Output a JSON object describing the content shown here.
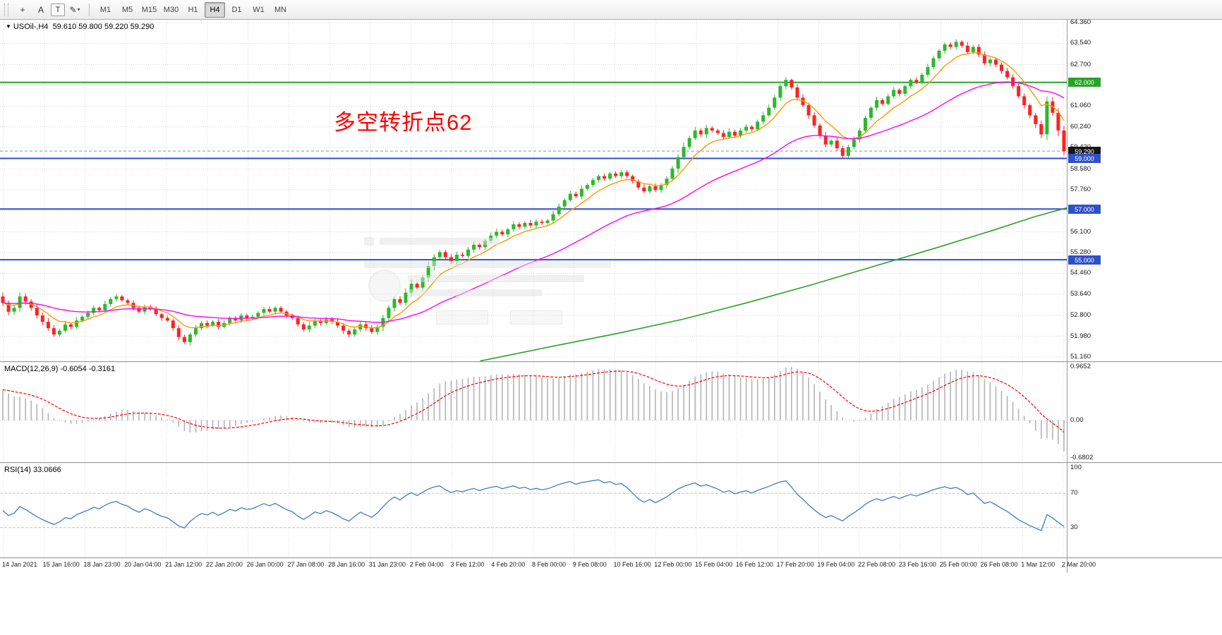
{
  "colors": {
    "candle_up": "#2db82d",
    "candle_down": "#ff2222",
    "ma_fast": "#ff9900",
    "ma_mid": "#ff00ff",
    "ma_slow": "#2e9e2e",
    "grid": "#d8d8d8",
    "macd_hist": "#b4b4b4",
    "macd_signal": "#ff0000",
    "rsi_line": "#3f7dc0",
    "annotation": "#ff0000",
    "blue_level": "#3050c8",
    "green_level": "#28a428"
  },
  "toolbar": {
    "tools": [
      {
        "id": "crosshair",
        "glyph": "+"
      },
      {
        "id": "arrow-label",
        "glyph": "A"
      },
      {
        "id": "text",
        "glyph": "T"
      },
      {
        "id": "draw",
        "glyph": "✎",
        "dropdown": "▾"
      }
    ],
    "timeframes": [
      "M1",
      "M5",
      "M15",
      "M30",
      "H1",
      "H4",
      "D1",
      "W1",
      "MN"
    ],
    "active_timeframe": "H4"
  },
  "chart_data": {
    "type": "candlestick",
    "symbol_line": {
      "symbol": "USOil-,H4",
      "ohlc": "59.610 59.800 59.220 59.290"
    },
    "annotation": {
      "text": "多空转折点62",
      "color": "#ff0000"
    },
    "ylim": [
      51.16,
      64.36
    ],
    "y_axis_labels": [
      "64.360",
      "63.540",
      "62.700",
      "61.880",
      "61.060",
      "60.240",
      "59.420",
      "58.580",
      "57.760",
      "56.940",
      "56.100",
      "55.280",
      "54.460",
      "53.640",
      "52.800",
      "51.980",
      "51.160"
    ],
    "time_labels": [
      "14 Jan 2021",
      "15 Jan 16:00",
      "18 Jan 23:00",
      "20 Jan 04:00",
      "21 Jan 12:00",
      "22 Jan 20:00",
      "26 Jan 00:00",
      "27 Jan 08:00",
      "28 Jan 16:00",
      "31 Jan 23:00",
      "2 Feb 04:00",
      "3 Feb 12:00",
      "4 Feb 20:00",
      "8 Feb 00:00",
      "9 Feb 08:00",
      "10 Feb 16:00",
      "12 Feb 00:00",
      "15 Feb 04:00",
      "16 Feb 12:00",
      "17 Feb 20:00",
      "19 Feb 04:00",
      "22 Feb 08:00",
      "23 Feb 16:00",
      "25 Feb 00:00",
      "26 Feb 08:00",
      "1 Mar 12:00",
      "2 Mar 20:00"
    ],
    "hlines": [
      {
        "price": 62.0,
        "color": "#28a428",
        "width": 2,
        "dash": null,
        "label": "62.000",
        "label_bg": "#28a428"
      },
      {
        "price": 59.29,
        "color": "#7e90c8",
        "width": 1,
        "dash": "4,3",
        "label": "59.290",
        "label_bg": "#14161a"
      },
      {
        "price": 59.0,
        "color": "#3050c8",
        "width": 2,
        "dash": null,
        "label": "59.000",
        "label_bg": "#3050c8"
      },
      {
        "price": 57.0,
        "color": "#3050c8",
        "width": 2,
        "dash": null,
        "label": "57.000",
        "label_bg": "#3050c8"
      },
      {
        "price": 55.0,
        "color": "#3050c8",
        "width": 2,
        "dash": null,
        "label": "55.000",
        "label_bg": "#3050c8"
      }
    ],
    "first_open": 53.55,
    "closes": [
      53.3,
      52.95,
      53.1,
      53.55,
      53.35,
      53.1,
      52.8,
      52.55,
      52.3,
      52.05,
      52.2,
      52.45,
      52.35,
      52.6,
      52.75,
      52.9,
      53.1,
      53.0,
      53.25,
      53.45,
      53.55,
      53.4,
      53.3,
      53.1,
      52.95,
      53.15,
      53.05,
      52.85,
      52.7,
      52.6,
      52.3,
      51.95,
      51.75,
      52.05,
      52.3,
      52.5,
      52.4,
      52.55,
      52.35,
      52.5,
      52.7,
      52.6,
      52.8,
      52.7,
      52.75,
      52.9,
      53.05,
      52.95,
      53.1,
      52.95,
      52.8,
      52.7,
      52.45,
      52.25,
      52.4,
      52.6,
      52.5,
      52.65,
      52.55,
      52.4,
      52.2,
      52.05,
      52.25,
      52.45,
      52.3,
      52.15,
      52.35,
      52.7,
      53.1,
      53.45,
      53.3,
      53.7,
      54.05,
      53.9,
      54.3,
      54.75,
      55.1,
      55.3,
      55.1,
      54.95,
      55.2,
      55.15,
      55.4,
      55.6,
      55.5,
      55.75,
      55.95,
      56.1,
      56.0,
      56.2,
      56.4,
      56.3,
      56.45,
      56.35,
      56.5,
      56.45,
      56.55,
      56.8,
      57.1,
      57.35,
      57.6,
      57.5,
      57.8,
      57.95,
      58.15,
      58.3,
      58.2,
      58.4,
      58.3,
      58.45,
      58.3,
      58.1,
      57.85,
      57.7,
      57.9,
      57.75,
      57.95,
      58.2,
      58.6,
      59.05,
      59.45,
      59.8,
      60.1,
      59.95,
      60.2,
      60.1,
      60.0,
      59.85,
      60.05,
      59.9,
      60.1,
      60.25,
      60.15,
      60.45,
      60.7,
      61.0,
      61.4,
      61.85,
      62.1,
      61.8,
      61.4,
      61.1,
      60.7,
      60.3,
      59.9,
      59.55,
      59.7,
      59.4,
      59.1,
      59.45,
      59.75,
      60.1,
      60.6,
      61.0,
      61.3,
      61.15,
      61.45,
      61.7,
      61.55,
      61.85,
      62.1,
      62.0,
      62.3,
      62.6,
      62.95,
      63.25,
      63.5,
      63.4,
      63.6,
      63.45,
      63.2,
      63.4,
      63.1,
      62.75,
      62.9,
      62.7,
      62.45,
      62.2,
      61.85,
      61.45,
      61.1,
      60.7,
      60.35,
      59.95,
      61.25,
      60.8,
      60.1,
      59.29
    ],
    "moving_averages": {
      "fast_period": 8,
      "mid_period": 34,
      "slow_path": [
        [
          0.45,
          51.0
        ],
        [
          0.52,
          51.6
        ],
        [
          0.58,
          52.1
        ],
        [
          0.64,
          52.65
        ],
        [
          0.7,
          53.3
        ],
        [
          0.76,
          54.0
        ],
        [
          0.82,
          54.75
        ],
        [
          0.88,
          55.5
        ],
        [
          0.93,
          56.15
        ],
        [
          0.97,
          56.7
        ],
        [
          1.0,
          57.05
        ]
      ]
    },
    "indicators": {
      "macd": {
        "header": "MACD(12,26,9) -0.6054 -0.3161",
        "fast": 12,
        "slow": 26,
        "signal": 9,
        "seed_offset": 0.55,
        "vmax": 0.9652,
        "vmin": -0.6802,
        "labels": [
          {
            "v": 0.9652,
            "t": "0.9652"
          },
          {
            "v": 0.0,
            "t": "0.00"
          },
          {
            "v": -0.6802,
            "t": "-0.6802"
          }
        ]
      },
      "rsi": {
        "header": "RSI(14) 33.0666",
        "period": 14,
        "range": [
          0,
          100
        ],
        "levels": [
          70,
          30
        ],
        "labels": [
          {
            "v": 100,
            "t": "100"
          },
          {
            "v": 70,
            "t": "70"
          },
          {
            "v": 30,
            "t": "30"
          }
        ]
      }
    }
  }
}
